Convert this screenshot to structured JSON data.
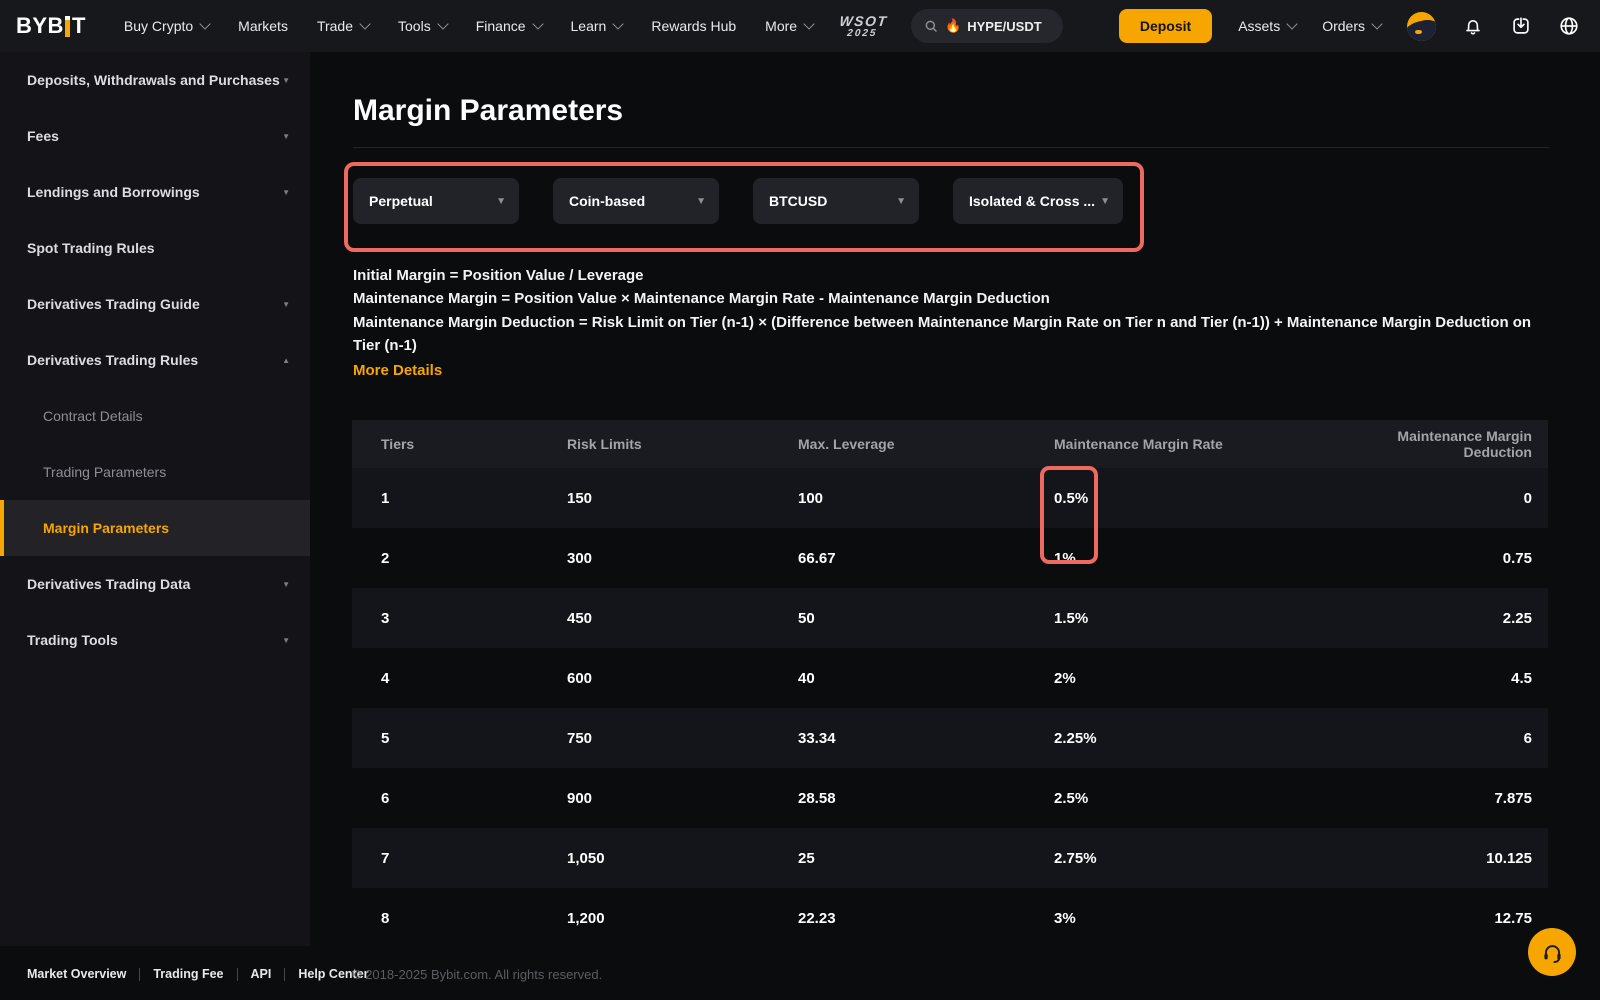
{
  "brand": {
    "logo_pre": "BYB",
    "logo_post": "T"
  },
  "colors": {
    "accent": "#f7a600",
    "annotation": "#ee695e"
  },
  "icons": {
    "chevron_down": "▼",
    "chevron_up": "▲"
  },
  "nav": {
    "items": [
      {
        "label": "Buy Crypto",
        "chevron": true
      },
      {
        "label": "Markets",
        "chevron": false
      },
      {
        "label": "Trade",
        "chevron": true
      },
      {
        "label": "Tools",
        "chevron": true
      },
      {
        "label": "Finance",
        "chevron": true
      },
      {
        "label": "Learn",
        "chevron": true
      },
      {
        "label": "Rewards Hub",
        "chevron": false
      },
      {
        "label": "More",
        "chevron": true
      }
    ],
    "wsot": {
      "line1": "WSOT",
      "line2": "2025"
    },
    "search": {
      "flame": "🔥",
      "value": "HYPE/USDT"
    },
    "deposit_label": "Deposit",
    "assets_label": "Assets",
    "orders_label": "Orders"
  },
  "sidebar": {
    "items": [
      {
        "label": "Deposits, Withdrawals and Purchases",
        "chevron": "down",
        "sub": false,
        "active": false
      },
      {
        "label": "Fees",
        "chevron": "down",
        "sub": false,
        "active": false
      },
      {
        "label": "Lendings and Borrowings",
        "chevron": "down",
        "sub": false,
        "active": false
      },
      {
        "label": "Spot Trading Rules",
        "chevron": null,
        "sub": false,
        "active": false
      },
      {
        "label": "Derivatives Trading Guide",
        "chevron": "down",
        "sub": false,
        "active": false
      },
      {
        "label": "Derivatives Trading Rules",
        "chevron": "up",
        "sub": false,
        "active": false
      },
      {
        "label": "Contract Details",
        "chevron": null,
        "sub": true,
        "active": false
      },
      {
        "label": "Trading Parameters",
        "chevron": null,
        "sub": true,
        "active": false
      },
      {
        "label": "Margin Parameters",
        "chevron": null,
        "sub": true,
        "active": true
      },
      {
        "label": "Derivatives Trading Data",
        "chevron": "down",
        "sub": false,
        "active": false
      },
      {
        "label": "Trading Tools",
        "chevron": "down",
        "sub": false,
        "active": false
      }
    ]
  },
  "main": {
    "title": "Margin Parameters",
    "filters": [
      "Perpetual",
      "Coin-based",
      "BTCUSD",
      "Isolated & Cross ..."
    ],
    "formulas": [
      "Initial Margin = Position Value / Leverage",
      "Maintenance Margin = Position Value × Maintenance Margin Rate - Maintenance Margin Deduction",
      "Maintenance Margin Deduction = Risk Limit on Tier (n-1) × (Difference between Maintenance Margin Rate on Tier n and Tier (n-1)) + Maintenance Margin Deduction on Tier (n-1)"
    ],
    "more_details_label": "More Details",
    "table": {
      "columns": [
        "Tiers",
        "Risk Limits",
        "Max. Leverage",
        "Maintenance Margin Rate",
        "Maintenance Margin Deduction"
      ],
      "rows": [
        [
          "1",
          "150",
          "100",
          "0.5%",
          "0"
        ],
        [
          "2",
          "300",
          "66.67",
          "1%",
          "0.75"
        ],
        [
          "3",
          "450",
          "50",
          "1.5%",
          "2.25"
        ],
        [
          "4",
          "600",
          "40",
          "2%",
          "4.5"
        ],
        [
          "5",
          "750",
          "33.34",
          "2.25%",
          "6"
        ],
        [
          "6",
          "900",
          "28.58",
          "2.5%",
          "7.875"
        ],
        [
          "7",
          "1,050",
          "25",
          "2.75%",
          "10.125"
        ],
        [
          "8",
          "1,200",
          "22.23",
          "3%",
          "12.75"
        ]
      ]
    }
  },
  "footer": {
    "links": [
      "Market Overview",
      "Trading Fee",
      "API",
      "Help Center"
    ],
    "copyright": "© 2018-2025 Bybit.com. All rights reserved."
  }
}
